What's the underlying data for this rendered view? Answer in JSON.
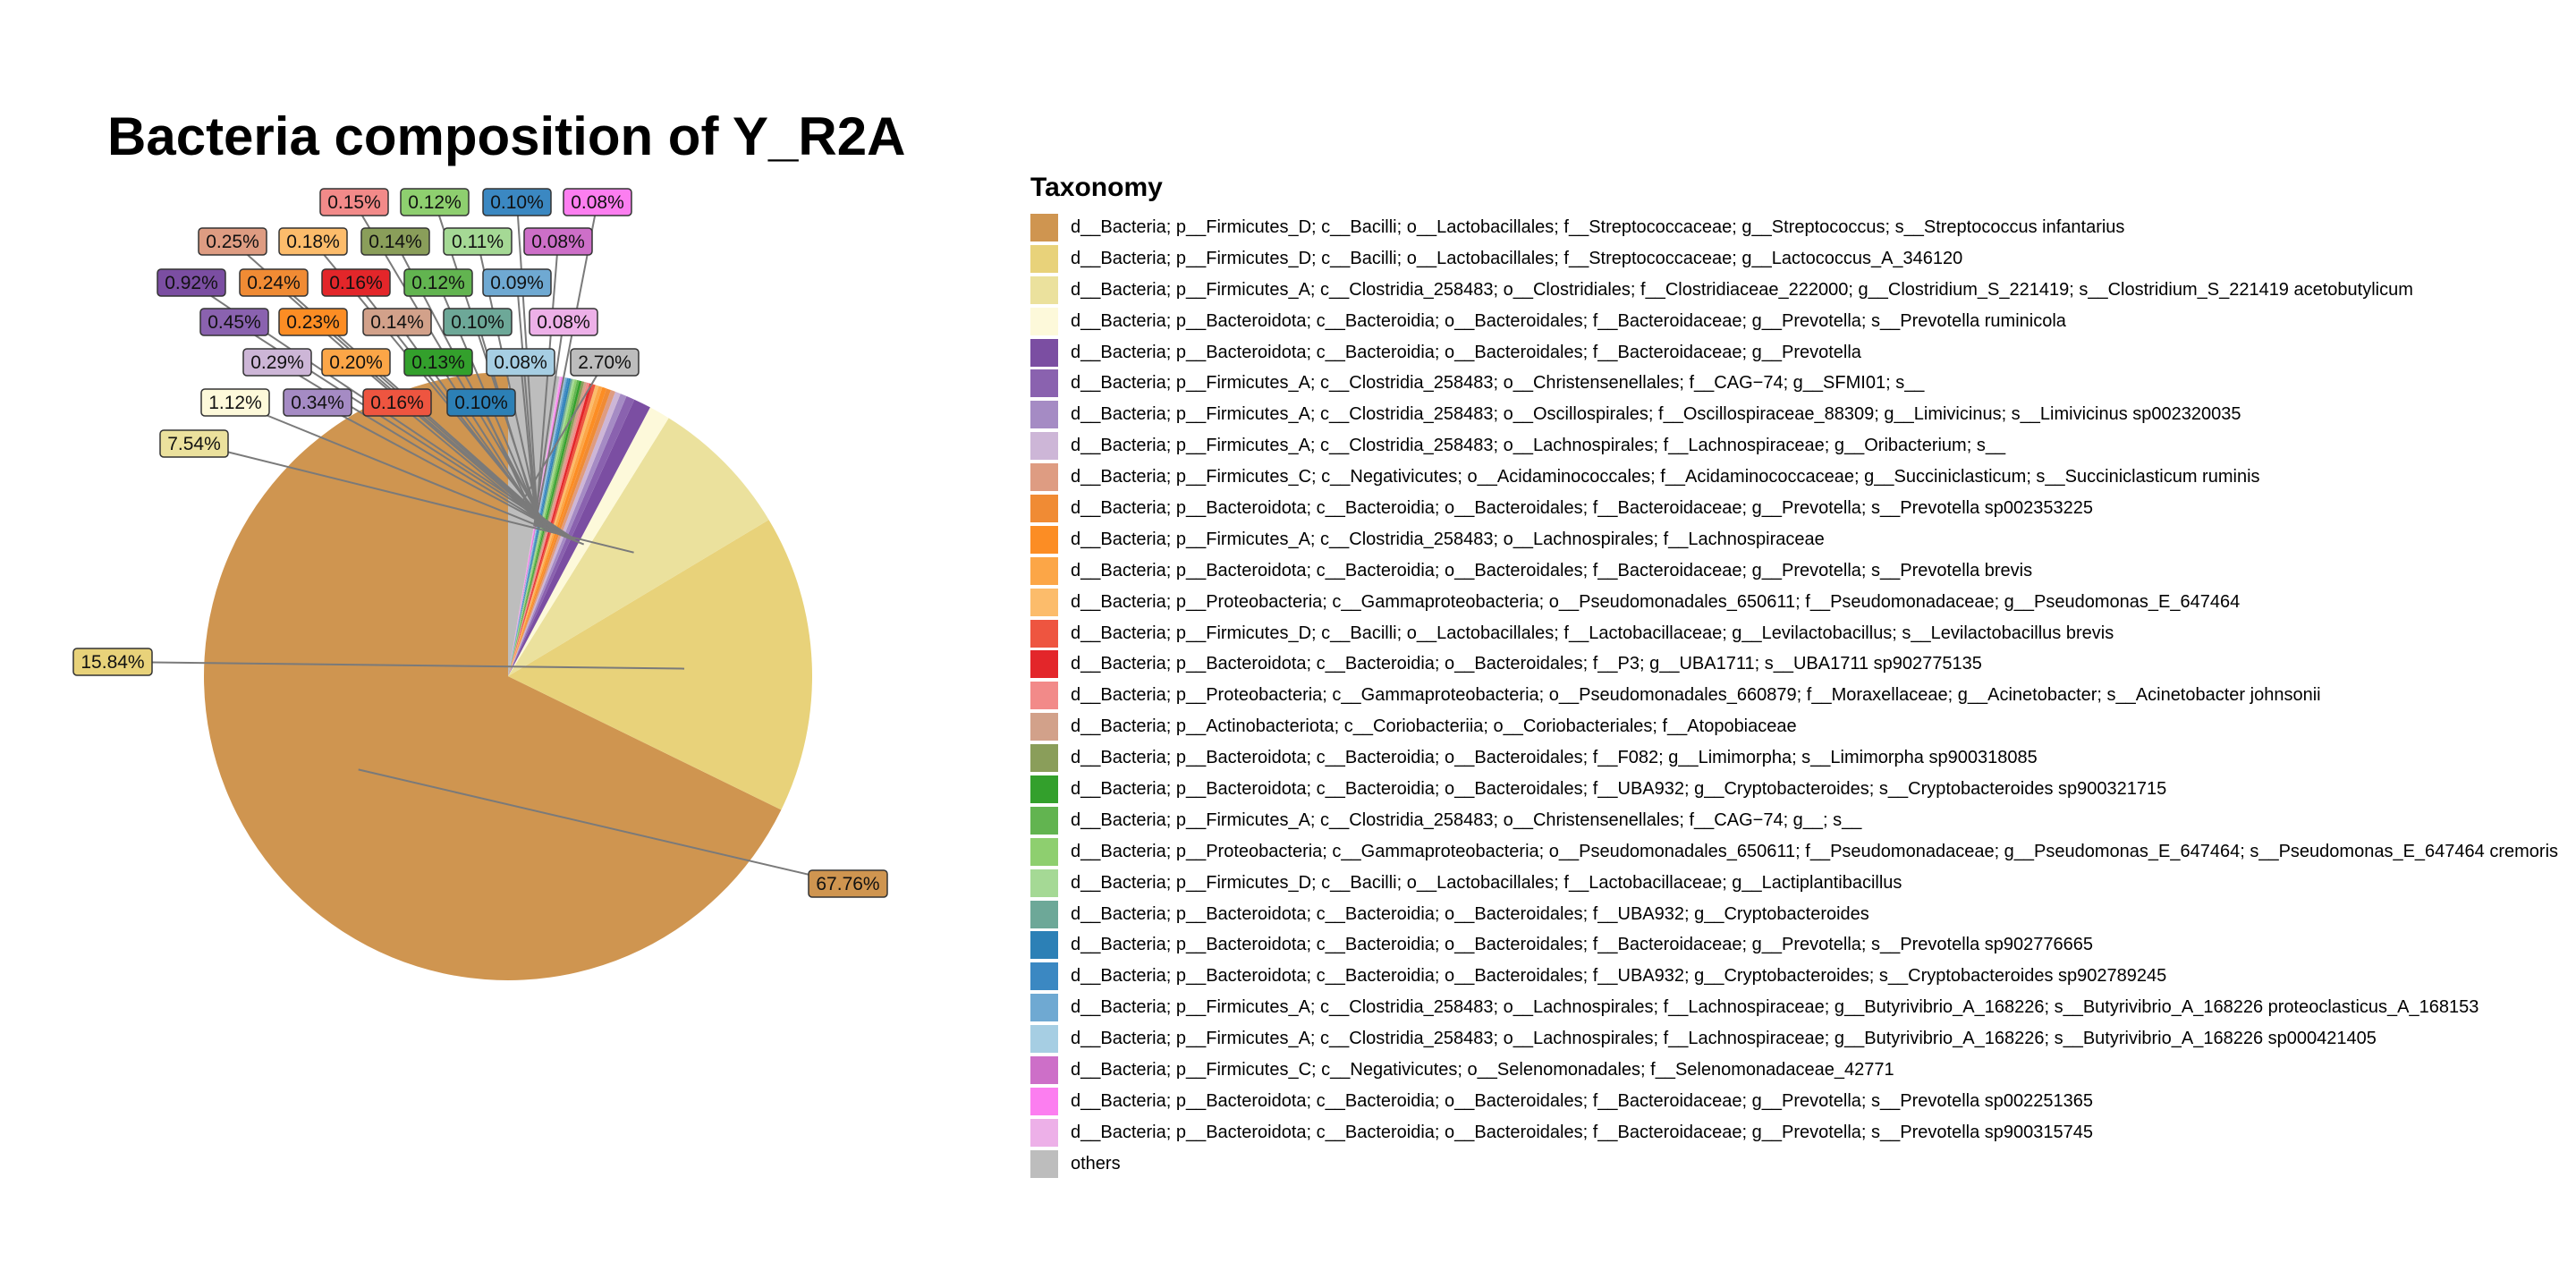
{
  "chart_data": {
    "type": "pie",
    "title": "Bacteria composition of Y_R2A",
    "legend_title": "Taxonomy",
    "legend_position": "right",
    "slices": [
      {
        "name": "d__Bacteria; p__Firmicutes_D; c__Bacilli; o__Lactobacillales; f__Streptococcaceae; g__Streptococcus; s__Streptococcus infantarius",
        "value": 67.76,
        "label": "67.76%",
        "color": "#CF9550"
      },
      {
        "name": "d__Bacteria; p__Firmicutes_D; c__Bacilli; o__Lactobacillales; f__Streptococcaceae; g__Lactococcus_A_346120",
        "value": 15.84,
        "label": "15.84%",
        "color": "#E8D27A"
      },
      {
        "name": "d__Bacteria; p__Firmicutes_A; c__Clostridia_258483; o__Clostridiales; f__Clostridiaceae_222000; g__Clostridium_S_221419; s__Clostridium_S_221419 acetobutylicum",
        "value": 7.54,
        "label": "7.54%",
        "color": "#EBE19D"
      },
      {
        "name": "d__Bacteria; p__Bacteroidota; c__Bacteroidia; o__Bacteroidales; f__Bacteroidaceae; g__Prevotella; s__Prevotella ruminicola",
        "value": 1.12,
        "label": "1.12%",
        "color": "#FDF9DA"
      },
      {
        "name": "d__Bacteria; p__Bacteroidota; c__Bacteroidia; o__Bacteroidales; f__Bacteroidaceae; g__Prevotella",
        "value": 0.92,
        "label": "0.92%",
        "color": "#7B4EA2"
      },
      {
        "name": "d__Bacteria; p__Firmicutes_A; c__Clostridia_258483; o__Christensenellales; f__CAG−74; g__SFMI01; s__",
        "value": 0.45,
        "label": "0.45%",
        "color": "#8A62AF"
      },
      {
        "name": "d__Bacteria; p__Firmicutes_A; c__Clostridia_258483; o__Oscillospirales; f__Oscillospiraceae_88309; g__Limivicinus; s__Limivicinus sp002320035",
        "value": 0.34,
        "label": "0.34%",
        "color": "#A58BC4"
      },
      {
        "name": "d__Bacteria; p__Firmicutes_A; c__Clostridia_258483; o__Lachnospirales; f__Lachnospiraceae; g__Oribacterium; s__",
        "value": 0.29,
        "label": "0.29%",
        "color": "#CDB6D7"
      },
      {
        "name": "d__Bacteria; p__Firmicutes_C; c__Negativicutes; o__Acidaminococcales; f__Acidaminococcaceae; g__Succiniclasticum; s__Succiniclasticum ruminis",
        "value": 0.25,
        "label": "0.25%",
        "color": "#DE9C82"
      },
      {
        "name": "d__Bacteria; p__Bacteroidota; c__Bacteroidia; o__Bacteroidales; f__Bacteroidaceae; g__Prevotella; s__Prevotella sp002353225",
        "value": 0.24,
        "label": "0.24%",
        "color": "#F08B34"
      },
      {
        "name": "d__Bacteria; p__Firmicutes_A; c__Clostridia_258483; o__Lachnospirales; f__Lachnospiraceae",
        "value": 0.23,
        "label": "0.23%",
        "color": "#FC8D24"
      },
      {
        "name": "d__Bacteria; p__Bacteroidota; c__Bacteroidia; o__Bacteroidales; f__Bacteroidaceae; g__Prevotella; s__Prevotella brevis",
        "value": 0.2,
        "label": "0.20%",
        "color": "#FCA647"
      },
      {
        "name": "d__Bacteria; p__Proteobacteria; c__Gammaproteobacteria; o__Pseudomonadales_650611; f__Pseudomonadaceae; g__Pseudomonas_E_647464",
        "value": 0.18,
        "label": "0.18%",
        "color": "#FCBC6B"
      },
      {
        "name": "d__Bacteria; p__Firmicutes_D; c__Bacilli; o__Lactobacillales; f__Lactobacillaceae; g__Levilactobacillus; s__Levilactobacillus brevis",
        "value": 0.16,
        "label": "0.16%",
        "color": "#EE5540"
      },
      {
        "name": "d__Bacteria; p__Bacteroidota; c__Bacteroidia; o__Bacteroidales; f__P3; g__UBA1711; s__UBA1711 sp902775135",
        "value": 0.16,
        "label": "0.16%",
        "color": "#E3262A"
      },
      {
        "name": "d__Bacteria; p__Proteobacteria; c__Gammaproteobacteria; o__Pseudomonadales_660879; f__Moraxellaceae; g__Acinetobacter; s__Acinetobacter johnsonii",
        "value": 0.15,
        "label": "0.15%",
        "color": "#F28A89"
      },
      {
        "name": "d__Bacteria; p__Actinobacteriota; c__Coriobacteriia; o__Coriobacteriales; f__Atopobiaceae",
        "value": 0.14,
        "label": "0.14%",
        "color": "#D2A18A"
      },
      {
        "name": "d__Bacteria; p__Bacteroidota; c__Bacteroidia; o__Bacteroidales; f__F082; g__Limimorpha; s__Limimorpha sp900318085",
        "value": 0.14,
        "label": "0.14%",
        "color": "#8A9E5A"
      },
      {
        "name": "d__Bacteria; p__Bacteroidota; c__Bacteroidia; o__Bacteroidales; f__UBA932; g__Cryptobacteroides; s__Cryptobacteroides sp900321715",
        "value": 0.13,
        "label": "0.13%",
        "color": "#33A02C"
      },
      {
        "name": "d__Bacteria; p__Firmicutes_A; c__Clostridia_258483; o__Christensenellales; f__CAG−74; g__; s__",
        "value": 0.12,
        "label": "0.12%",
        "color": "#62B450"
      },
      {
        "name": "d__Bacteria; p__Proteobacteria; c__Gammaproteobacteria; o__Pseudomonadales_650611; f__Pseudomonadaceae; g__Pseudomonas_E_647464; s__Pseudomonas_E_647464 cremoris",
        "value": 0.12,
        "label": "0.12%",
        "color": "#8ECF6F"
      },
      {
        "name": "d__Bacteria; p__Firmicutes_D; c__Bacilli; o__Lactobacillales; f__Lactobacillaceae; g__Lactiplantibacillus",
        "value": 0.11,
        "label": "0.11%",
        "color": "#A5D995"
      },
      {
        "name": "d__Bacteria; p__Bacteroidota; c__Bacteroidia; o__Bacteroidales; f__UBA932; g__Cryptobacteroides",
        "value": 0.1,
        "label": "0.10%",
        "color": "#6DA898"
      },
      {
        "name": "d__Bacteria; p__Bacteroidota; c__Bacteroidia; o__Bacteroidales; f__Bacteroidaceae; g__Prevotella; s__Prevotella sp902776665",
        "value": 0.1,
        "label": "0.10%",
        "color": "#2C80B6"
      },
      {
        "name": "d__Bacteria; p__Bacteroidota; c__Bacteroidia; o__Bacteroidales; f__UBA932; g__Cryptobacteroides; s__Cryptobacteroides sp902789245",
        "value": 0.1,
        "label": "0.10%",
        "color": "#3B88C2"
      },
      {
        "name": "d__Bacteria; p__Firmicutes_A; c__Clostridia_258483; o__Lachnospirales; f__Lachnospiraceae; g__Butyrivibrio_A_168226; s__Butyrivibrio_A_168226 proteoclasticus_A_168153",
        "value": 0.09,
        "label": "0.09%",
        "color": "#6FA9D2"
      },
      {
        "name": "d__Bacteria; p__Firmicutes_A; c__Clostridia_258483; o__Lachnospirales; f__Lachnospiraceae; g__Butyrivibrio_A_168226; s__Butyrivibrio_A_168226 sp000421405",
        "value": 0.08,
        "label": "0.08%",
        "color": "#A6CEE3"
      },
      {
        "name": "d__Bacteria; p__Firmicutes_C; c__Negativicutes; o__Selenomonadales; f__Selenomonadaceae_42771",
        "value": 0.08,
        "label": "0.08%",
        "color": "#CD6FC8"
      },
      {
        "name": "d__Bacteria; p__Bacteroidota; c__Bacteroidia; o__Bacteroidales; f__Bacteroidaceae; g__Prevotella; s__Prevotella sp002251365",
        "value": 0.08,
        "label": "0.08%",
        "color": "#FC7EF0"
      },
      {
        "name": "d__Bacteria; p__Bacteroidota; c__Bacteroidia; o__Bacteroidales; f__Bacteroidaceae; g__Prevotella; s__Prevotella sp900315745",
        "value": 0.08,
        "label": "0.08%",
        "color": "#EDB0E8"
      },
      {
        "name": "others",
        "value": 2.7,
        "label": "2.70%",
        "color": "#BDBDBD"
      }
    ]
  }
}
